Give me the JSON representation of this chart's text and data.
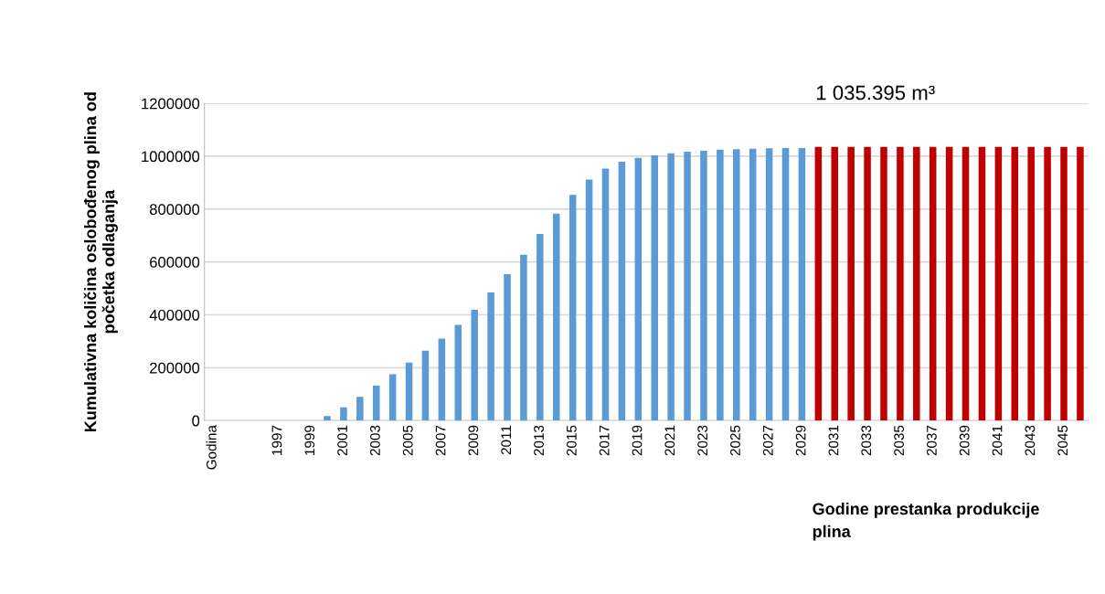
{
  "chart_data": {
    "type": "bar",
    "xlabel": "Godine prestanka produkcije\nplina",
    "ylabel": "Kumulativna količina oslobođenog plina od\npočetka odlaganja",
    "categories": [
      "Godina",
      null,
      null,
      null,
      "1997",
      null,
      "1999",
      null,
      "2001",
      null,
      "2003",
      null,
      "2005",
      null,
      "2007",
      null,
      "2009",
      null,
      "2011",
      null,
      "2013",
      null,
      "2015",
      null,
      "2017",
      null,
      "2019",
      null,
      "2021",
      null,
      "2023",
      null,
      "2025",
      null,
      "2027",
      null,
      "2029",
      null,
      "2031",
      null,
      "2033",
      null,
      "2035",
      null,
      "2037",
      null,
      "2039",
      null,
      "2041",
      null,
      "2043",
      null,
      "2045",
      null
    ],
    "series": [
      {
        "color": "#5b9bd5",
        "values": [
          null,
          null,
          null,
          null,
          null,
          null,
          null,
          17000,
          50000,
          90000,
          132000,
          175000,
          219000,
          264000,
          310000,
          362000,
          419000,
          485000,
          554000,
          627000,
          706000,
          783000,
          854000,
          912000,
          953000,
          979000,
          994000,
          1003000,
          1011000,
          1017000,
          1021000,
          1025000,
          1027000,
          1028000,
          1030000,
          1031000,
          1031000,
          null,
          null,
          null,
          null,
          null,
          null,
          null,
          null,
          null,
          null,
          null,
          null,
          null,
          null,
          null,
          null,
          null
        ]
      },
      {
        "color": "#c00000",
        "values": [
          null,
          null,
          null,
          null,
          null,
          null,
          null,
          null,
          null,
          null,
          null,
          null,
          null,
          null,
          null,
          null,
          null,
          null,
          null,
          null,
          null,
          null,
          null,
          null,
          null,
          null,
          null,
          null,
          null,
          null,
          null,
          null,
          null,
          null,
          null,
          null,
          null,
          1035000,
          1035000,
          1035000,
          1035000,
          1035000,
          1035000,
          1035000,
          1035000,
          1035000,
          1035000,
          1035000,
          1035000,
          1035000,
          1035000,
          1035000,
          1035000,
          1035000
        ]
      }
    ],
    "ylim": [
      0,
      1200000
    ],
    "yticks": [
      0,
      200000,
      400000,
      600000,
      800000,
      1000000,
      1200000
    ],
    "grid": "y",
    "annotations": [
      "1 035.395 m³"
    ]
  }
}
